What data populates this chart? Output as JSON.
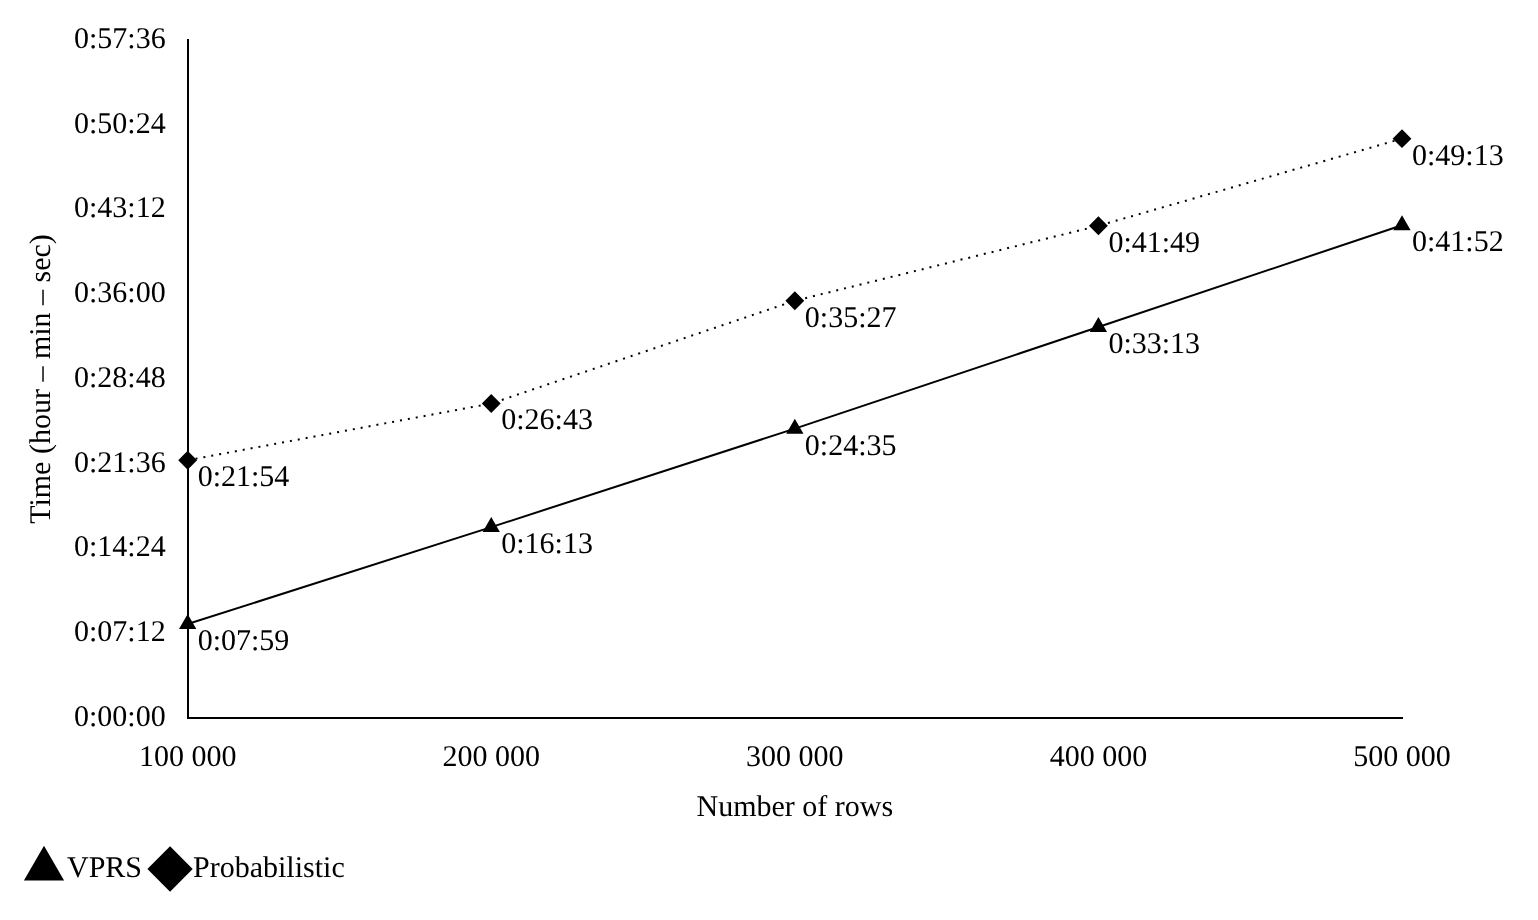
{
  "chart_data": {
    "type": "line",
    "xlabel": "Number of rows",
    "ylabel": "Time (hour – min – sec)",
    "categories": [
      "100 000",
      "200 000",
      "300 000",
      "400 000",
      "500 000"
    ],
    "series": [
      {
        "name": "VPRS",
        "color": "#000000",
        "marker": "triangle",
        "line_style": "solid",
        "values": [
          479,
          973,
          1475,
          1993,
          2512
        ],
        "value_labels": [
          "0:07:59",
          "0:16:13",
          "0:24:35",
          "0:33:13",
          "0:41:52"
        ]
      },
      {
        "name": "Probabilistic",
        "color": "#000000",
        "marker": "diamond",
        "line_style": "dotted",
        "values": [
          1314,
          1603,
          2127,
          2509,
          2953
        ],
        "value_labels": [
          "0:21:54",
          "0:26:43",
          "0:35:27",
          "0:41:49",
          "0:49:13"
        ]
      }
    ],
    "ylim": [
      0,
      3456
    ],
    "yticks": [
      {
        "value": 0,
        "label": "0:00:00"
      },
      {
        "value": 432,
        "label": "0:07:12"
      },
      {
        "value": 864,
        "label": "0:14:24"
      },
      {
        "value": 1296,
        "label": "0:21:36"
      },
      {
        "value": 1728,
        "label": "0:28:48"
      },
      {
        "value": 2160,
        "label": "0:36:00"
      },
      {
        "value": 2592,
        "label": "0:43:12"
      },
      {
        "value": 3024,
        "label": "0:50:24"
      },
      {
        "value": 3456,
        "label": "0:57:36"
      }
    ],
    "grid": false,
    "legend": "bottom left"
  }
}
